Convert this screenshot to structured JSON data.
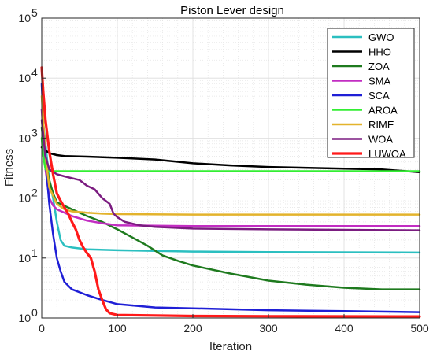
{
  "chart_data": {
    "type": "line",
    "title": "Piston Lever design",
    "xlabel": "Iteration",
    "ylabel": "Fitness",
    "xlim": [
      0,
      500
    ],
    "ylim": [
      1,
      100000
    ],
    "yscale": "log",
    "grid": true,
    "legend_position": "top-right",
    "x_ticks": [
      "0",
      "100",
      "200",
      "300",
      "400",
      "500"
    ],
    "y_ticks": [
      {
        "base": "10",
        "exp": "0"
      },
      {
        "base": "10",
        "exp": "1"
      },
      {
        "base": "10",
        "exp": "2"
      },
      {
        "base": "10",
        "exp": "3"
      },
      {
        "base": "10",
        "exp": "4"
      },
      {
        "base": "10",
        "exp": "5"
      }
    ],
    "series": [
      {
        "name": "GWO",
        "color": "#2bbfc0",
        "width": 2.5,
        "points": [
          [
            0,
            3000
          ],
          [
            5,
            800
          ],
          [
            10,
            200
          ],
          [
            15,
            100
          ],
          [
            20,
            40
          ],
          [
            25,
            20
          ],
          [
            30,
            16
          ],
          [
            40,
            15
          ],
          [
            60,
            14
          ],
          [
            100,
            13.5
          ],
          [
            200,
            12.8
          ],
          [
            300,
            12.6
          ],
          [
            500,
            12.3
          ]
        ]
      },
      {
        "name": "HHO",
        "color": "#000000",
        "width": 2.5,
        "points": [
          [
            0,
            700
          ],
          [
            10,
            560
          ],
          [
            20,
            520
          ],
          [
            30,
            500
          ],
          [
            60,
            490
          ],
          [
            100,
            470
          ],
          [
            150,
            440
          ],
          [
            200,
            380
          ],
          [
            250,
            350
          ],
          [
            300,
            330
          ],
          [
            400,
            310
          ],
          [
            450,
            300
          ],
          [
            500,
            270
          ]
        ]
      },
      {
        "name": "ZOA",
        "color": "#1e7a1e",
        "width": 2.5,
        "points": [
          [
            0,
            1500
          ],
          [
            5,
            400
          ],
          [
            10,
            200
          ],
          [
            15,
            120
          ],
          [
            20,
            85
          ],
          [
            40,
            65
          ],
          [
            60,
            50
          ],
          [
            80,
            40
          ],
          [
            100,
            30
          ],
          [
            120,
            22
          ],
          [
            140,
            16
          ],
          [
            160,
            11
          ],
          [
            180,
            9
          ],
          [
            200,
            7.5
          ],
          [
            250,
            5.5
          ],
          [
            300,
            4.2
          ],
          [
            350,
            3.6
          ],
          [
            400,
            3.2
          ],
          [
            450,
            3.0
          ],
          [
            500,
            3.0
          ]
        ]
      },
      {
        "name": "SMA",
        "color": "#c22dc2",
        "width": 2.5,
        "points": [
          [
            0,
            3000
          ],
          [
            5,
            300
          ],
          [
            10,
            100
          ],
          [
            15,
            75
          ],
          [
            20,
            65
          ],
          [
            40,
            50
          ],
          [
            60,
            42
          ],
          [
            80,
            38
          ],
          [
            100,
            35
          ],
          [
            200,
            34
          ],
          [
            300,
            34
          ],
          [
            500,
            34
          ]
        ]
      },
      {
        "name": "SCA",
        "color": "#1f1fd6",
        "width": 2.5,
        "points": [
          [
            0,
            8000
          ],
          [
            3,
            1000
          ],
          [
            6,
            300
          ],
          [
            10,
            80
          ],
          [
            15,
            25
          ],
          [
            20,
            10
          ],
          [
            25,
            6
          ],
          [
            30,
            4
          ],
          [
            40,
            3
          ],
          [
            60,
            2.4
          ],
          [
            80,
            2
          ],
          [
            100,
            1.7
          ],
          [
            150,
            1.5
          ],
          [
            200,
            1.45
          ],
          [
            300,
            1.35
          ],
          [
            400,
            1.3
          ],
          [
            500,
            1.25
          ]
        ]
      },
      {
        "name": "AROA",
        "color": "#33ee33",
        "width": 2.5,
        "points": [
          [
            0,
            1000
          ],
          [
            2,
            500
          ],
          [
            5,
            300
          ],
          [
            10,
            280
          ],
          [
            20,
            280
          ],
          [
            100,
            280
          ],
          [
            200,
            280
          ],
          [
            300,
            280
          ],
          [
            500,
            280
          ]
        ]
      },
      {
        "name": "RIME",
        "color": "#e3b32c",
        "width": 2.5,
        "points": [
          [
            0,
            5000
          ],
          [
            5,
            500
          ],
          [
            10,
            150
          ],
          [
            20,
            80
          ],
          [
            30,
            65
          ],
          [
            40,
            60
          ],
          [
            60,
            57
          ],
          [
            80,
            55
          ],
          [
            100,
            54
          ],
          [
            200,
            53
          ],
          [
            300,
            53
          ],
          [
            500,
            53
          ]
        ]
      },
      {
        "name": "WOA",
        "color": "#7b1c80",
        "width": 2.5,
        "points": [
          [
            0,
            2000
          ],
          [
            5,
            500
          ],
          [
            10,
            300
          ],
          [
            20,
            250
          ],
          [
            30,
            230
          ],
          [
            50,
            200
          ],
          [
            60,
            160
          ],
          [
            70,
            140
          ],
          [
            80,
            100
          ],
          [
            90,
            80
          ],
          [
            95,
            55
          ],
          [
            100,
            48
          ],
          [
            110,
            40
          ],
          [
            130,
            35
          ],
          [
            150,
            33
          ],
          [
            200,
            31
          ],
          [
            300,
            30
          ],
          [
            400,
            29.5
          ],
          [
            500,
            29
          ]
        ]
      },
      {
        "name": "LUWOA",
        "color": "#ff1a1a",
        "width": 3.2,
        "points": [
          [
            0,
            15000
          ],
          [
            2,
            6000
          ],
          [
            5,
            2000
          ],
          [
            10,
            600
          ],
          [
            15,
            250
          ],
          [
            20,
            120
          ],
          [
            25,
            90
          ],
          [
            30,
            70
          ],
          [
            35,
            55
          ],
          [
            40,
            40
          ],
          [
            45,
            30
          ],
          [
            50,
            20
          ],
          [
            55,
            15
          ],
          [
            60,
            12
          ],
          [
            65,
            10
          ],
          [
            70,
            6
          ],
          [
            75,
            3
          ],
          [
            80,
            2
          ],
          [
            85,
            1.4
          ],
          [
            90,
            1.2
          ],
          [
            100,
            1.12
          ],
          [
            150,
            1.1
          ],
          [
            200,
            1.08
          ],
          [
            300,
            1.07
          ],
          [
            500,
            1.06
          ]
        ]
      }
    ]
  }
}
